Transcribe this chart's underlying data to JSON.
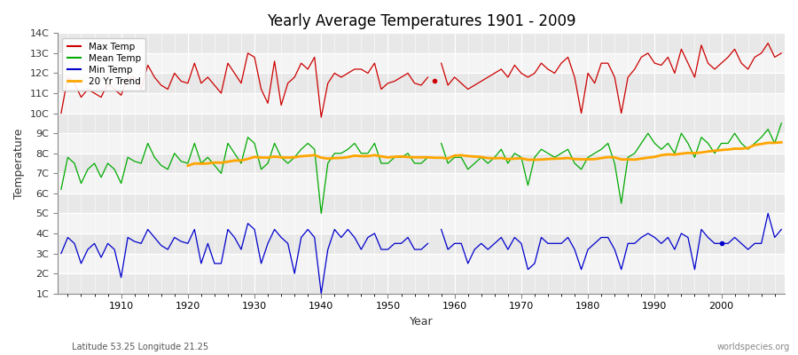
{
  "title": "Yearly Average Temperatures 1901 - 2009",
  "xlabel": "Year",
  "ylabel": "Temperature",
  "subtitle_left": "Latitude 53.25 Longitude 21.25",
  "subtitle_right": "worldspecies.org",
  "legend_labels": [
    "Max Temp",
    "Mean Temp",
    "Min Temp",
    "20 Yr Trend"
  ],
  "legend_colors": [
    "#cc0000",
    "#00aa00",
    "#0000cc",
    "#ffa500"
  ],
  "years": [
    1901,
    1902,
    1903,
    1904,
    1905,
    1906,
    1907,
    1908,
    1909,
    1910,
    1911,
    1912,
    1913,
    1914,
    1915,
    1916,
    1917,
    1918,
    1919,
    1920,
    1921,
    1922,
    1923,
    1924,
    1925,
    1926,
    1927,
    1928,
    1929,
    1930,
    1931,
    1932,
    1933,
    1934,
    1935,
    1936,
    1937,
    1938,
    1939,
    1940,
    1941,
    1942,
    1943,
    1944,
    1945,
    1946,
    1947,
    1948,
    1949,
    1950,
    1951,
    1952,
    1953,
    1954,
    1955,
    1956,
    1957,
    1958,
    1959,
    1960,
    1961,
    1962,
    1963,
    1964,
    1965,
    1966,
    1967,
    1968,
    1969,
    1970,
    1971,
    1972,
    1973,
    1974,
    1975,
    1976,
    1977,
    1978,
    1979,
    1980,
    1981,
    1982,
    1983,
    1984,
    1985,
    1986,
    1987,
    1988,
    1989,
    1990,
    1991,
    1992,
    1993,
    1994,
    1995,
    1996,
    1997,
    1998,
    1999,
    2000,
    2001,
    2002,
    2003,
    2004,
    2005,
    2006,
    2007,
    2008,
    2009
  ],
  "max_temp": [
    10.0,
    11.8,
    11.5,
    10.8,
    11.2,
    11.0,
    10.8,
    11.5,
    11.2,
    10.9,
    11.8,
    11.8,
    11.2,
    12.4,
    11.8,
    11.4,
    11.2,
    12.0,
    11.6,
    11.5,
    12.5,
    11.5,
    11.8,
    11.4,
    11.0,
    12.5,
    12.0,
    11.5,
    13.0,
    12.8,
    11.2,
    10.5,
    12.6,
    10.4,
    11.5,
    11.8,
    12.5,
    12.2,
    12.8,
    9.8,
    11.5,
    12.0,
    11.8,
    12.0,
    12.2,
    12.2,
    12.0,
    12.5,
    11.2,
    11.5,
    11.6,
    11.8,
    12.0,
    11.5,
    11.4,
    11.8,
    null,
    12.5,
    11.4,
    11.8,
    11.5,
    11.2,
    11.4,
    11.6,
    11.8,
    12.0,
    12.2,
    11.8,
    12.4,
    12.0,
    11.8,
    12.0,
    12.5,
    12.2,
    12.0,
    12.5,
    12.8,
    11.8,
    10.0,
    12.0,
    11.5,
    12.5,
    12.5,
    11.8,
    10.0,
    11.8,
    12.2,
    12.8,
    13.0,
    12.5,
    12.4,
    12.8,
    12.0,
    13.2,
    12.5,
    11.8,
    13.4,
    12.5,
    12.2,
    12.5,
    12.8,
    13.2,
    12.5,
    12.2,
    12.8,
    13.0,
    13.5,
    12.8,
    13.0
  ],
  "max_dot": [
    1957,
    11.6
  ],
  "mean_temp": [
    6.2,
    7.8,
    7.5,
    6.5,
    7.2,
    7.5,
    6.8,
    7.5,
    7.2,
    6.5,
    7.8,
    7.6,
    7.5,
    8.5,
    7.8,
    7.4,
    7.2,
    8.0,
    7.6,
    7.5,
    8.5,
    7.5,
    7.8,
    7.4,
    7.0,
    8.5,
    8.0,
    7.5,
    8.8,
    8.5,
    7.2,
    7.5,
    8.5,
    7.8,
    7.5,
    7.8,
    8.2,
    8.5,
    8.2,
    5.0,
    7.5,
    8.0,
    8.0,
    8.2,
    8.5,
    8.0,
    8.0,
    8.5,
    7.5,
    7.5,
    7.8,
    7.8,
    8.0,
    7.5,
    7.5,
    7.8,
    null,
    8.5,
    7.5,
    7.8,
    7.8,
    7.2,
    7.5,
    7.8,
    7.5,
    7.8,
    8.2,
    7.5,
    8.0,
    7.8,
    6.4,
    7.8,
    8.2,
    8.0,
    7.8,
    8.0,
    8.2,
    7.5,
    7.2,
    7.8,
    8.0,
    8.2,
    8.5,
    7.5,
    5.5,
    7.8,
    8.0,
    8.5,
    9.0,
    8.5,
    8.2,
    8.5,
    8.0,
    9.0,
    8.5,
    7.8,
    8.8,
    8.5,
    8.0,
    8.5,
    8.5,
    9.0,
    8.5,
    8.2,
    8.5,
    8.8,
    9.2,
    8.5,
    9.5
  ],
  "min_temp": [
    3.0,
    3.8,
    3.5,
    2.5,
    3.2,
    3.5,
    2.8,
    3.5,
    3.2,
    1.8,
    3.8,
    3.6,
    3.5,
    4.2,
    3.8,
    3.4,
    3.2,
    3.8,
    3.6,
    3.5,
    4.2,
    2.5,
    3.5,
    2.5,
    2.5,
    4.2,
    3.8,
    3.2,
    4.5,
    4.2,
    2.5,
    3.5,
    4.2,
    3.8,
    3.5,
    2.0,
    3.8,
    4.2,
    3.8,
    1.0,
    3.2,
    4.2,
    3.8,
    4.2,
    3.8,
    3.2,
    3.8,
    4.0,
    3.2,
    3.2,
    3.5,
    3.5,
    3.8,
    3.2,
    3.2,
    3.5,
    null,
    4.2,
    3.2,
    3.5,
    3.5,
    2.5,
    3.2,
    3.5,
    3.2,
    3.5,
    3.8,
    3.2,
    3.8,
    3.5,
    2.2,
    2.5,
    3.8,
    3.5,
    3.5,
    3.5,
    3.8,
    3.2,
    2.2,
    3.2,
    3.5,
    3.8,
    3.8,
    3.2,
    2.2,
    3.5,
    3.5,
    3.8,
    4.0,
    3.8,
    3.5,
    3.8,
    3.2,
    4.0,
    3.8,
    2.2,
    4.2,
    3.8,
    3.5,
    3.5,
    3.5,
    3.8,
    3.5,
    3.2,
    3.5,
    3.5,
    5.0,
    3.8,
    4.2
  ],
  "min_dot": [
    2000,
    3.5
  ],
  "ylim": [
    1,
    14
  ],
  "yticks": [
    1,
    2,
    3,
    4,
    5,
    6,
    7,
    8,
    9,
    10,
    11,
    12,
    13,
    14
  ],
  "ytick_labels": [
    "1C",
    "2C",
    "3C",
    "4C",
    "5C",
    "6C",
    "7C",
    "8C",
    "9C",
    "10C",
    "11C",
    "12C",
    "13C",
    "14C"
  ],
  "bg_color": "#ffffff",
  "stripe_colors": [
    "#e8e8e8",
    "#f4f4f4"
  ],
  "grid_color": "#ffffff",
  "trend_window": 20,
  "xlim_left": 1901,
  "xlim_right": 2009
}
